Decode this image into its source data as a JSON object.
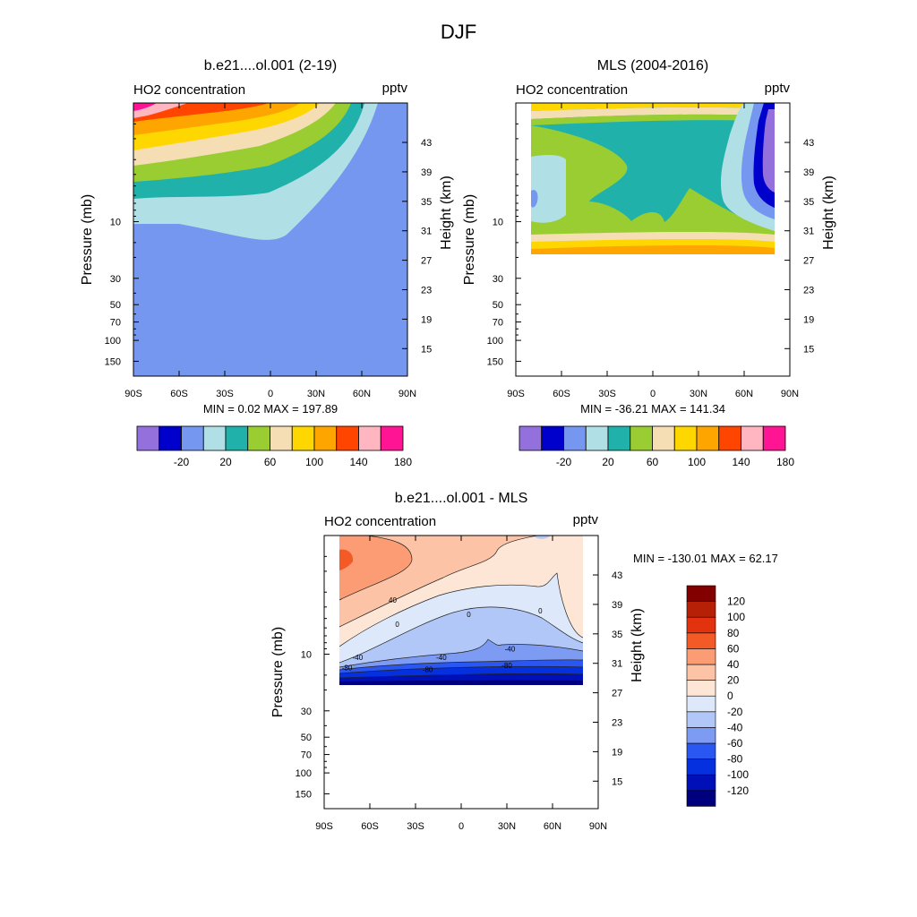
{
  "figure": {
    "title": "DJF"
  },
  "colors": {
    "abs_palette": [
      "#9370db",
      "#0000cd",
      "#7597ef",
      "#b0e0e6",
      "#20b2aa",
      "#9acd32",
      "#f5deb3",
      "#ffd700",
      "#ffa500",
      "#ff4500",
      "#ffb6c1",
      "#ff1493"
    ],
    "diff_palette": [
      "#00007f",
      "#0010b8",
      "#0530e0",
      "#2a56f2",
      "#7d9bf2",
      "#b1c7f7",
      "#dde9fb",
      "#fde6d6",
      "#fdc3a6",
      "#fb9c75",
      "#f35a26",
      "#e2320e",
      "#b62006",
      "#820000"
    ]
  },
  "chart_data": [
    {
      "type": "contour",
      "title": "b.e21....ol.001 (2-19)",
      "left_label": "HO2 concentration",
      "right_label": "pptv",
      "xlabel": "",
      "ylabel": "Pressure (mb)",
      "ylabel_right": "Height (km)",
      "x_ticks": [
        "90S",
        "60S",
        "30S",
        "0",
        "30N",
        "60N",
        "90N"
      ],
      "x_tick_values": [
        -90,
        -60,
        -30,
        0,
        30,
        60,
        90
      ],
      "y_ticks": [
        "10",
        "30",
        "50",
        "70",
        "100",
        "150"
      ],
      "y_tick_values": [
        10,
        30,
        50,
        70,
        100,
        150
      ],
      "height_ticks": [
        "43",
        "39",
        "35",
        "31",
        "27",
        "23",
        "19",
        "15"
      ],
      "height_tick_values": [
        43,
        39,
        35,
        31,
        27,
        23,
        19,
        15
      ],
      "xlim": [
        -90,
        90
      ],
      "ylim_pressure": [
        1,
        200
      ],
      "stats": "MIN =   0.02  MAX = 197.89",
      "levels": [
        -40,
        -20,
        0,
        20,
        40,
        60,
        80,
        100,
        120,
        140,
        160,
        180
      ],
      "colorbar": {
        "labels": [
          "-20",
          "20",
          "60",
          "100",
          "140",
          "180"
        ],
        "label_values": [
          -20,
          20,
          60,
          100,
          140,
          180
        ]
      },
      "data_extent": {
        "lat": [
          -90,
          90
        ],
        "pressure": [
          1,
          200
        ]
      }
    },
    {
      "type": "contour",
      "title": "MLS (2004-2016)",
      "left_label": "HO2 concentration",
      "right_label": "pptv",
      "xlabel": "",
      "ylabel": "Pressure (mb)",
      "ylabel_right": "Height (km)",
      "x_ticks": [
        "90S",
        "60S",
        "30S",
        "0",
        "30N",
        "60N",
        "90N"
      ],
      "x_tick_values": [
        -90,
        -60,
        -30,
        0,
        30,
        60,
        90
      ],
      "y_ticks": [
        "10",
        "30",
        "50",
        "70",
        "100",
        "150"
      ],
      "y_tick_values": [
        10,
        30,
        50,
        70,
        100,
        150
      ],
      "height_ticks": [
        "43",
        "39",
        "35",
        "31",
        "27",
        "23",
        "19",
        "15"
      ],
      "height_tick_values": [
        43,
        39,
        35,
        31,
        27,
        23,
        19,
        15
      ],
      "xlim": [
        -90,
        90
      ],
      "ylim_pressure": [
        1,
        200
      ],
      "stats": "MIN = -36.21  MAX = 141.34",
      "levels": [
        -40,
        -20,
        0,
        20,
        40,
        60,
        80,
        100,
        120,
        140,
        160,
        180
      ],
      "colorbar": {
        "labels": [
          "-20",
          "20",
          "60",
          "100",
          "140",
          "180"
        ],
        "label_values": [
          -20,
          20,
          60,
          100,
          140,
          180
        ]
      },
      "data_extent": {
        "lat": [
          -80,
          80
        ],
        "pressure": [
          1,
          21.5
        ]
      }
    },
    {
      "type": "contour",
      "title": "b.e21....ol.001 - MLS",
      "left_label": "HO2 concentration",
      "right_label": "pptv",
      "xlabel": "",
      "ylabel": "Pressure (mb)",
      "ylabel_right": "Height (km)",
      "x_ticks": [
        "90S",
        "60S",
        "30S",
        "0",
        "30N",
        "60N",
        "90N"
      ],
      "x_tick_values": [
        -90,
        -60,
        -30,
        0,
        30,
        60,
        90
      ],
      "y_ticks": [
        "10",
        "30",
        "50",
        "70",
        "100",
        "150"
      ],
      "y_tick_values": [
        10,
        30,
        50,
        70,
        100,
        150
      ],
      "height_ticks": [
        "43",
        "39",
        "35",
        "31",
        "27",
        "23",
        "19",
        "15"
      ],
      "height_tick_values": [
        43,
        39,
        35,
        31,
        27,
        23,
        19,
        15
      ],
      "xlim": [
        -90,
        90
      ],
      "ylim_pressure": [
        1,
        200
      ],
      "stats": "MIN = -130.01  MAX =  62.17",
      "levels": [
        -130,
        -120,
        -100,
        -80,
        -60,
        -40,
        -20,
        0,
        20,
        40,
        60,
        80,
        100,
        120,
        130
      ],
      "contour_labels": [
        {
          "text": "40",
          "lat": -45,
          "p": 3.5
        },
        {
          "text": "0",
          "lat": 5,
          "p": 4.6
        },
        {
          "text": "0",
          "lat": -42,
          "p": 5.6
        },
        {
          "text": "0",
          "lat": 52,
          "p": 4.3
        },
        {
          "text": "-40",
          "lat": 32,
          "p": 9.0
        },
        {
          "text": "-40",
          "lat": -13,
          "p": 10.6
        },
        {
          "text": "-40",
          "lat": -68,
          "p": 10.6
        },
        {
          "text": "-80",
          "lat": 30,
          "p": 12.4
        },
        {
          "text": "-80",
          "lat": -22,
          "p": 13.4
        },
        {
          "text": "-80",
          "lat": -75,
          "p": 13.0
        }
      ],
      "colorbar": {
        "labels": [
          "120",
          "100",
          "80",
          "60",
          "40",
          "20",
          "0",
          "-20",
          "-40",
          "-60",
          "-80",
          "-100",
          "-120"
        ],
        "label_values": [
          120,
          100,
          80,
          60,
          40,
          20,
          0,
          -20,
          -40,
          -60,
          -80,
          -100,
          -120
        ]
      },
      "data_extent": {
        "lat": [
          -80,
          80
        ],
        "pressure": [
          1,
          21.5
        ]
      }
    }
  ]
}
